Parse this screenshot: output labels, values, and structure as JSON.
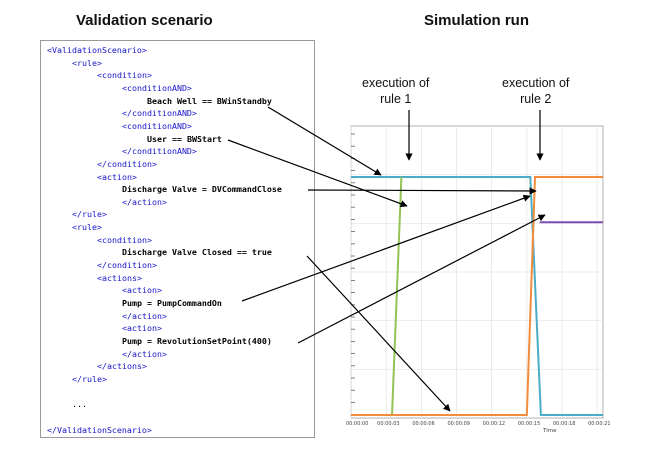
{
  "left_title": "Validation scenario",
  "right_title": "Simulation run",
  "annotations": {
    "rule1_line1": "execution of",
    "rule1_line2": "rule 1",
    "rule2_line1": "execution of",
    "rule2_line2": "rule 2"
  },
  "xml_lines": [
    {
      "indent": 0,
      "kind": "tag",
      "text": "<ValidationScenario>"
    },
    {
      "indent": 1,
      "kind": "tag",
      "text": "<rule>"
    },
    {
      "indent": 2,
      "kind": "tag",
      "text": "<condition>"
    },
    {
      "indent": 3,
      "kind": "tag",
      "text": "<conditionAND>"
    },
    {
      "indent": 4,
      "kind": "stmt",
      "text": "Beach Well == BWinStandby"
    },
    {
      "indent": 3,
      "kind": "tag",
      "text": "</conditionAND>"
    },
    {
      "indent": 3,
      "kind": "tag",
      "text": "<conditionAND>"
    },
    {
      "indent": 4,
      "kind": "stmt",
      "text": "User == BWStart"
    },
    {
      "indent": 3,
      "kind": "tag",
      "text": "</conditionAND>"
    },
    {
      "indent": 2,
      "kind": "tag",
      "text": "</condition>"
    },
    {
      "indent": 2,
      "kind": "tag",
      "text": "<action>"
    },
    {
      "indent": 3,
      "kind": "stmt",
      "text": "Discharge Valve = DVCommandClose"
    },
    {
      "indent": 3,
      "kind": "tag",
      "text": "</action>"
    },
    {
      "indent": 1,
      "kind": "tag",
      "text": "</rule>"
    },
    {
      "indent": 1,
      "kind": "tag",
      "text": "<rule>"
    },
    {
      "indent": 2,
      "kind": "tag",
      "text": "<condition>"
    },
    {
      "indent": 3,
      "kind": "stmt",
      "text": "Discharge Valve Closed == true"
    },
    {
      "indent": 2,
      "kind": "tag",
      "text": "</condition>"
    },
    {
      "indent": 2,
      "kind": "tag",
      "text": "<actions>"
    },
    {
      "indent": 3,
      "kind": "tag",
      "text": "<action>"
    },
    {
      "indent": 3,
      "kind": "stmt",
      "text": "Pump = PumpCommandOn"
    },
    {
      "indent": 3,
      "kind": "tag",
      "text": "</action>"
    },
    {
      "indent": 3,
      "kind": "tag",
      "text": "<action>"
    },
    {
      "indent": 3,
      "kind": "stmt",
      "text": "Pump = RevolutionSetPoint(400)"
    },
    {
      "indent": 3,
      "kind": "tag",
      "text": "</action>"
    },
    {
      "indent": 2,
      "kind": "tag",
      "text": "</actions>"
    },
    {
      "indent": 1,
      "kind": "tag",
      "text": "</rule>"
    },
    {
      "indent": 0,
      "kind": "blank",
      "text": ""
    },
    {
      "indent": 1,
      "kind": "dots",
      "text": "..."
    },
    {
      "indent": 0,
      "kind": "blank",
      "text": ""
    },
    {
      "indent": 0,
      "kind": "tag",
      "text": "</ValidationScenario>"
    }
  ],
  "chart_data": {
    "type": "line",
    "xlabel": "Time",
    "x_ticks": [
      "00:00:00",
      "00:00:03",
      "00:00:06",
      "00:00:09",
      "00:00:12",
      "00:00:15",
      "00:00:18",
      "00:00:21"
    ],
    "xlim": [
      0,
      21.5
    ],
    "series": [
      {
        "color": "#4bacc6",
        "points": [
          [
            0,
            1
          ],
          [
            15.3,
            1
          ],
          [
            16.2,
            0
          ],
          [
            21.5,
            0
          ]
        ]
      },
      {
        "color": "#92c353",
        "points": [
          [
            0,
            0
          ],
          [
            3.5,
            0
          ],
          [
            4.3,
            1
          ]
        ]
      },
      {
        "color": "#f28c3c",
        "points": [
          [
            0,
            0
          ],
          [
            15.0,
            0
          ],
          [
            15.7,
            1
          ],
          [
            21.5,
            1
          ]
        ]
      },
      {
        "color": "#7b4fb3",
        "points": [
          [
            16.1,
            0.81
          ],
          [
            21.5,
            0.81
          ]
        ]
      }
    ]
  }
}
